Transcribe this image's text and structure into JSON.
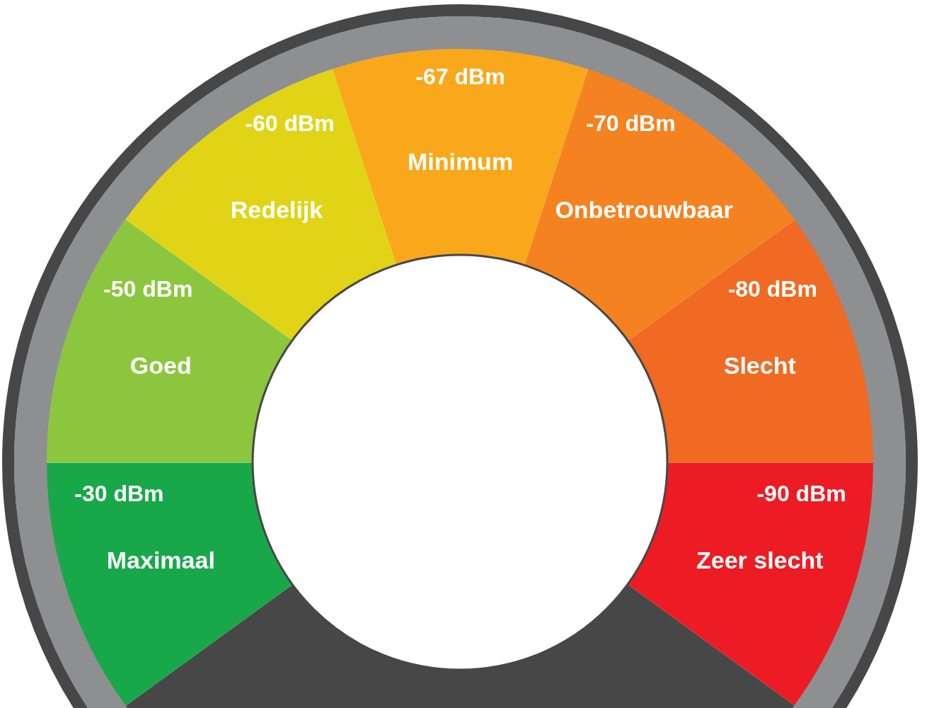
{
  "chart_data": {
    "type": "donut",
    "categories": [
      "Maximaal",
      "Goed",
      "Redelijk",
      "Minimum",
      "Onbetrouwbaar",
      "Slecht",
      "Zeer slecht",
      null
    ],
    "values": [
      10,
      10,
      10,
      10,
      10,
      10,
      10,
      30
    ],
    "colors": [
      "#18a84a",
      "#8cc63f",
      "#e1d416",
      "#f9a81c",
      "#f58220",
      "#f06a23",
      "#ed1c24",
      "#474747"
    ],
    "annotations": [
      "-30 dBm",
      "-50 dBm",
      "-60 dBm",
      "-67 dBm",
      "-70 dBm",
      "-80 dBm",
      "-90 dBm"
    ]
  }
}
